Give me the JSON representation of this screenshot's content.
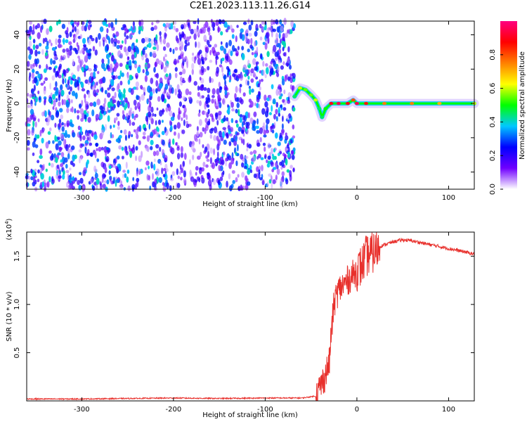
{
  "title": "C2E1.2023.113.11.26.G14",
  "chart_data": [
    {
      "type": "heatmap",
      "xlabel": "Height of straight line (km)",
      "ylabel": "Frequency (Hz)",
      "xlim": [
        -360,
        128
      ],
      "ylim": [
        -50,
        48
      ],
      "xticks": [
        -300,
        -200,
        -100,
        0,
        100
      ],
      "yticks": [
        -40,
        -20,
        0,
        20,
        40
      ],
      "colorbar": {
        "label": "Normalized spectral amplitude",
        "range": [
          0.0,
          1.0
        ],
        "ticks": [
          0.0,
          0.2,
          0.4,
          0.6,
          0.8
        ],
        "colors": [
          "#ffffff",
          "#7000ff",
          "#0000ff",
          "#00c8ff",
          "#00ff00",
          "#ffff00",
          "#ff8000",
          "#ff0000",
          "#ff0080"
        ]
      },
      "noise_region_x": [
        -360,
        -68
      ],
      "signal_track": {
        "x": [
          -68,
          -62,
          -56,
          -50,
          -45,
          -41,
          -38,
          -34,
          -28,
          -20,
          -10,
          -4,
          0,
          10,
          30,
          60,
          90,
          128
        ],
        "y": [
          4,
          9,
          8,
          5,
          2,
          -3,
          -8,
          -3,
          0,
          0,
          0,
          2,
          0,
          0,
          0,
          0,
          0,
          0
        ],
        "amplitude": [
          0.45,
          0.6,
          0.55,
          0.55,
          0.6,
          0.45,
          0.45,
          0.5,
          0.9,
          0.95,
          0.9,
          0.8,
          0.95,
          0.85,
          0.75,
          0.75,
          0.7,
          0.6
        ]
      }
    },
    {
      "type": "line",
      "xlabel": "Height of straight line (km)",
      "ylabel": "SNR (10 * v/v)",
      "y_multiplier": "(x10",
      "y_multiplier_exp": "4",
      "y_multiplier_close": ")",
      "xlim": [
        -360,
        128
      ],
      "ylim": [
        0,
        1.75
      ],
      "xticks": [
        -300,
        -200,
        -100,
        0,
        100
      ],
      "yticks": [
        0.5,
        1.0,
        1.5
      ],
      "ytick_labels": [
        "0.5",
        "1.0",
        "1.5"
      ],
      "color": "#e8302c",
      "series": [
        {
          "x": [
            -360,
            -300,
            -250,
            -200,
            -150,
            -100,
            -60,
            -45,
            -40,
            -35,
            -30,
            -28,
            -25,
            -22,
            -20,
            -15,
            -10,
            -5,
            0,
            5,
            10,
            15,
            20,
            25,
            30,
            40,
            50,
            60,
            70,
            80,
            90,
            100,
            110,
            120,
            128
          ],
          "y": [
            0.02,
            0.02,
            0.025,
            0.03,
            0.025,
            0.03,
            0.03,
            0.05,
            0.15,
            0.25,
            0.4,
            0.7,
            1.0,
            1.1,
            1.15,
            1.2,
            1.25,
            1.3,
            1.35,
            1.4,
            1.5,
            1.52,
            1.55,
            1.6,
            1.62,
            1.65,
            1.67,
            1.66,
            1.64,
            1.62,
            1.6,
            1.58,
            1.56,
            1.54,
            1.52
          ]
        }
      ]
    }
  ]
}
